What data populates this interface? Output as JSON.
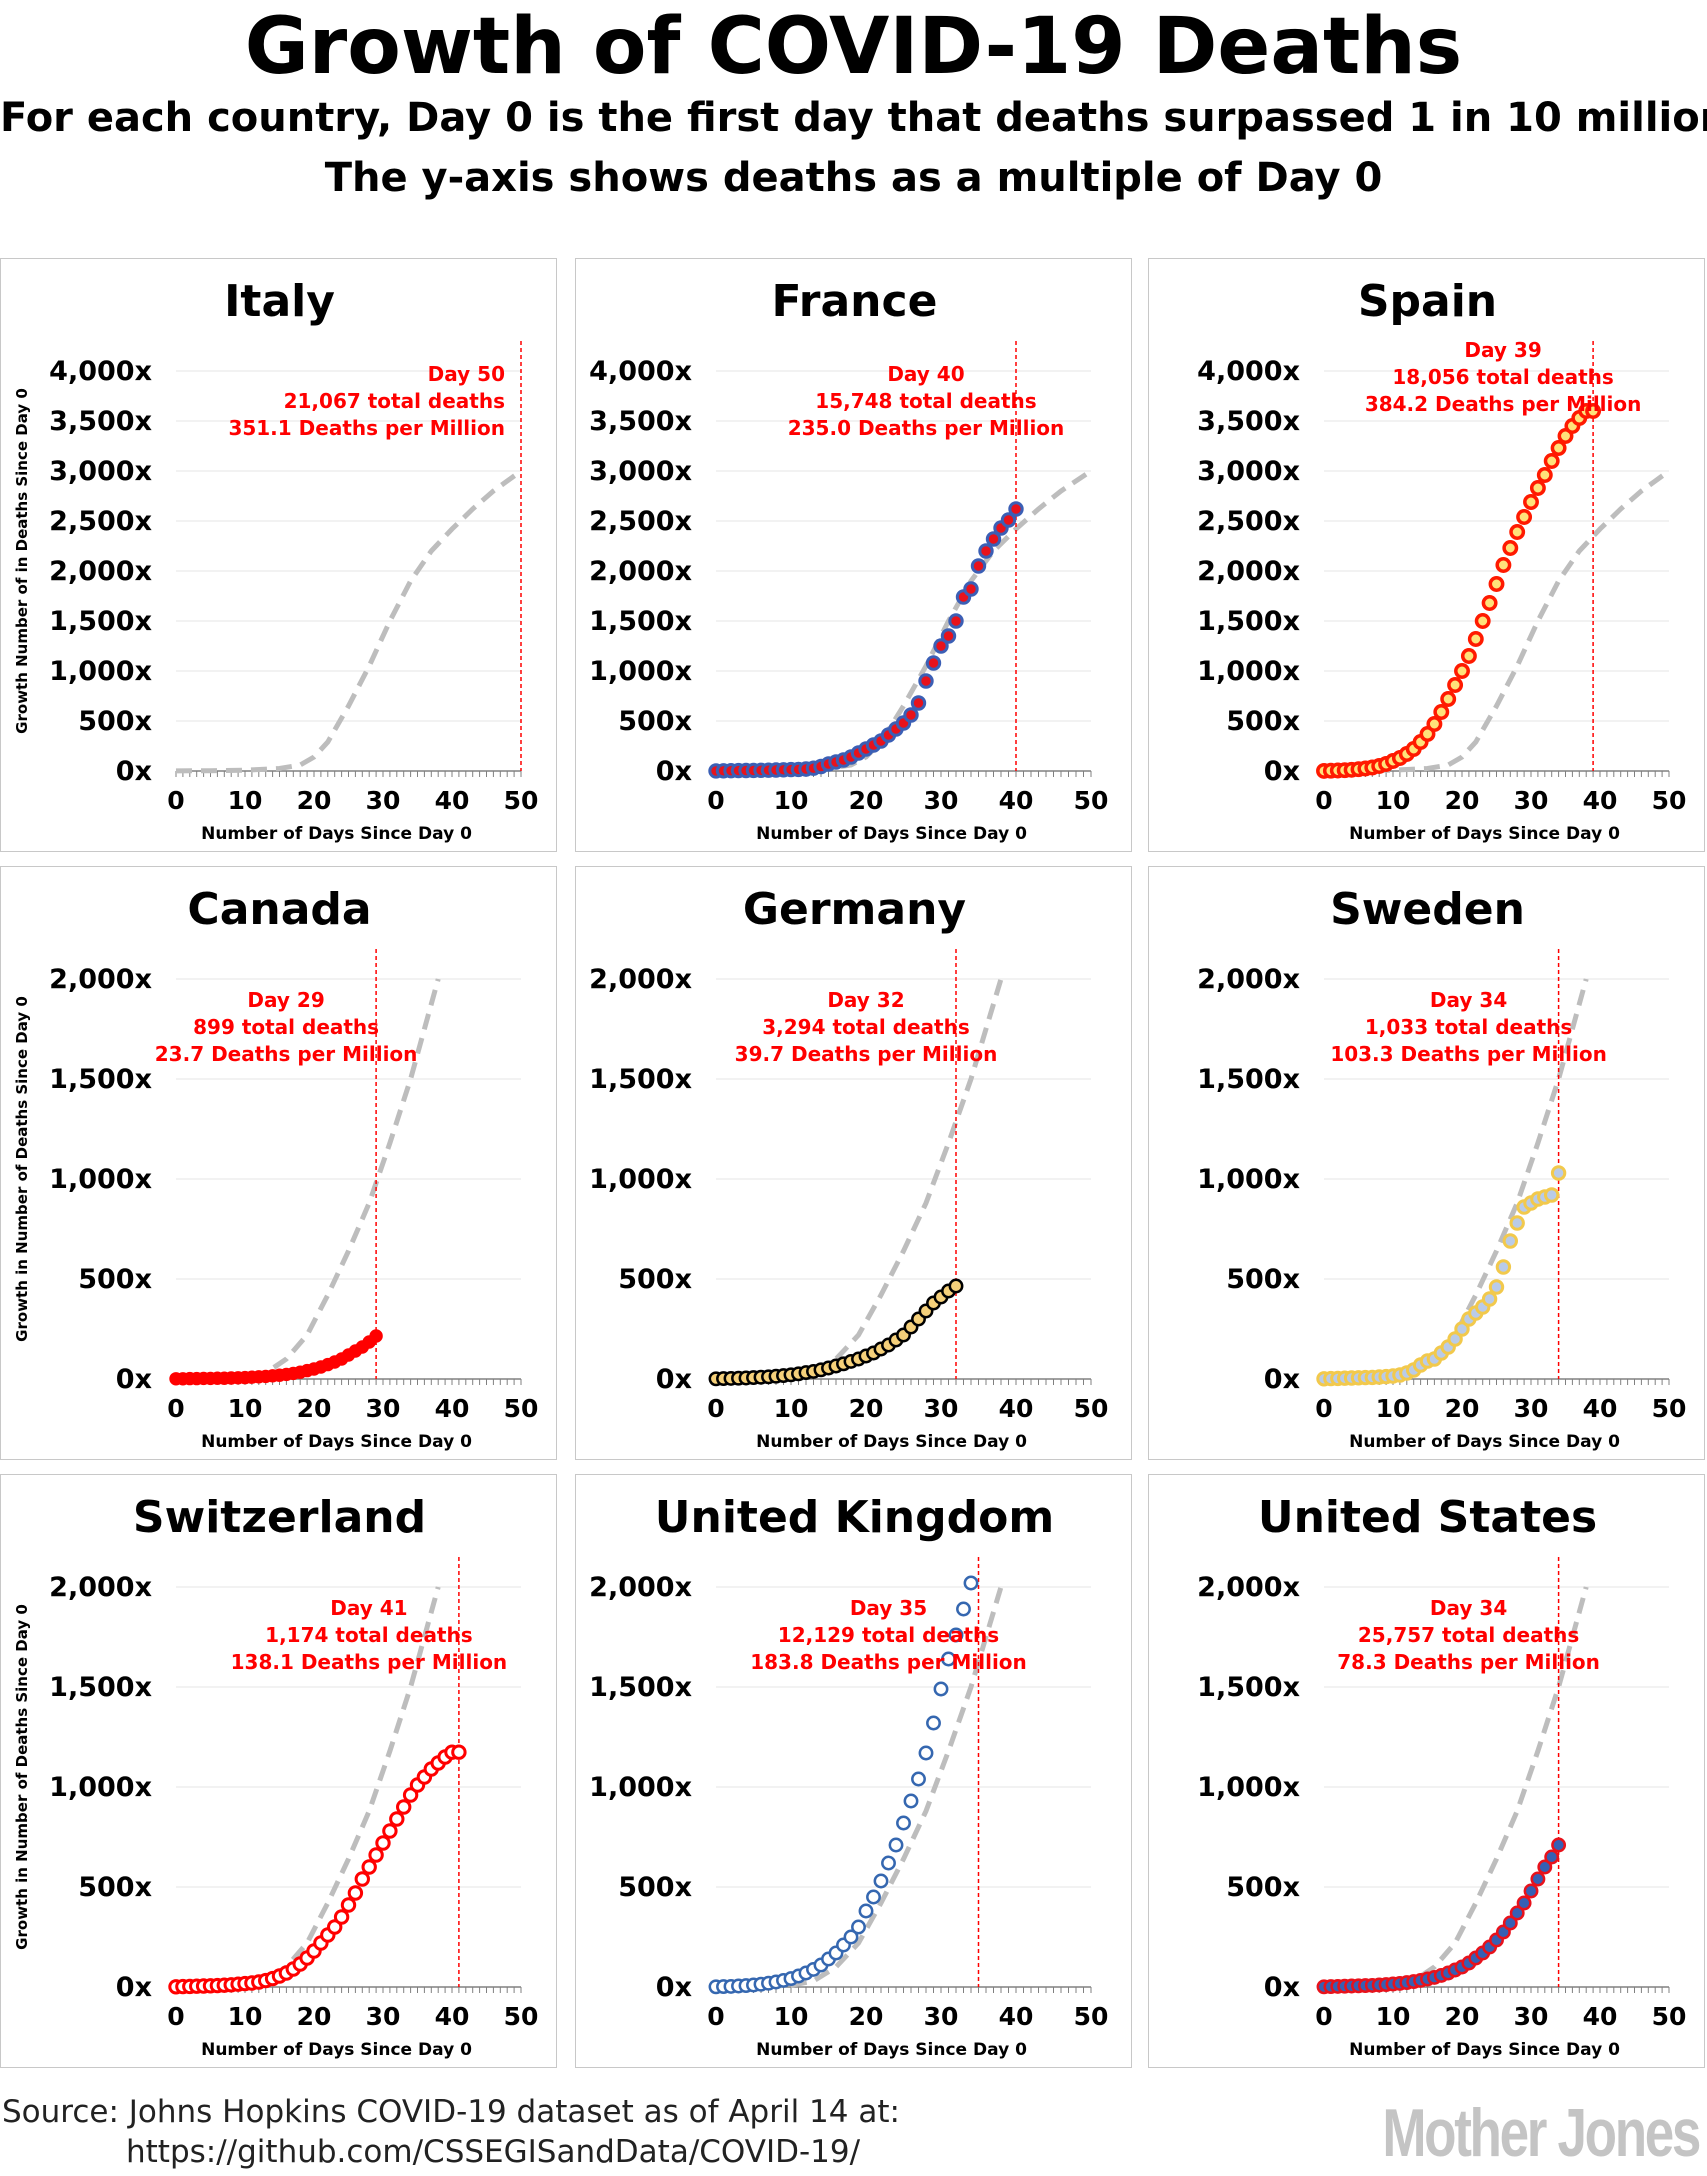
{
  "title": "Growth of COVID-19 Deaths",
  "subtitle1": "For each country, Day 0 is the first day that deaths surpassed 1 in 10 million",
  "subtitle2": "The y-axis shows deaths as a multiple of Day 0",
  "source_line1": "Source: Johns Hopkins COVID-19 dataset as of April 14 at:",
  "source_line2": "https://github.com/CSSEGISandData/COVID-19/",
  "logo": "Mother Jones",
  "colors": {
    "annotation": "#ff0000",
    "reference": "#bdbdbd",
    "axis": "#808080"
  },
  "chart_data": [
    {
      "type": "scatter",
      "country": "Italy",
      "ylim": [
        0,
        4000
      ],
      "yticks": [
        "0x",
        "500x",
        "1,000x",
        "1,500x",
        "2,000x",
        "2,500x",
        "3,000x",
        "3,500x",
        "4,000x"
      ],
      "xticks": [
        "0",
        "10",
        "20",
        "30",
        "40",
        "50"
      ],
      "xlim": [
        0,
        50
      ],
      "xlabel": "Number of Days Since Day 0",
      "ylabel": "Growth Number of in Deaths Since Day 0",
      "annotation": [
        "Day 50",
        "21,067 total deaths",
        "351.1 Deaths per Million"
      ],
      "vline": 50,
      "marker": "none",
      "reference": [
        [
          0,
          1
        ],
        [
          5,
          3
        ],
        [
          10,
          8
        ],
        [
          15,
          25
        ],
        [
          18,
          60
        ],
        [
          20,
          140
        ],
        [
          22,
          290
        ],
        [
          25,
          650
        ],
        [
          28,
          1050
        ],
        [
          31,
          1500
        ],
        [
          34,
          1900
        ],
        [
          37,
          2200
        ],
        [
          40,
          2420
        ],
        [
          43,
          2620
        ],
        [
          46,
          2800
        ],
        [
          50,
          3000
        ]
      ],
      "values": []
    },
    {
      "type": "scatter",
      "country": "France",
      "ylim": [
        0,
        4000
      ],
      "yticks": [
        "0x",
        "500x",
        "1,000x",
        "1,500x",
        "2,000x",
        "2,500x",
        "3,000x",
        "3,500x",
        "4,000x"
      ],
      "xticks": [
        "0",
        "10",
        "20",
        "30",
        "40",
        "50"
      ],
      "xlim": [
        0,
        50
      ],
      "xlabel": "Number of Days Since Day 0",
      "ylabel": "",
      "annotation": [
        "Day 40",
        "15,748 total deaths",
        "235.0 Deaths per Million"
      ],
      "vline": 40,
      "marker": "france",
      "reference": [
        [
          0,
          1
        ],
        [
          5,
          3
        ],
        [
          10,
          8
        ],
        [
          15,
          25
        ],
        [
          18,
          60
        ],
        [
          20,
          140
        ],
        [
          22,
          290
        ],
        [
          25,
          650
        ],
        [
          28,
          1050
        ],
        [
          31,
          1500
        ],
        [
          34,
          1900
        ],
        [
          37,
          2200
        ],
        [
          40,
          2420
        ],
        [
          43,
          2620
        ],
        [
          46,
          2800
        ],
        [
          50,
          3000
        ]
      ],
      "values": [
        1,
        2,
        3,
        4,
        5,
        6,
        7,
        8,
        10,
        12,
        14,
        16,
        20,
        28,
        45,
        70,
        90,
        110,
        140,
        180,
        220,
        260,
        300,
        360,
        420,
        480,
        560,
        680,
        900,
        1080,
        1250,
        1350,
        1500,
        1740,
        1820,
        2050,
        2200,
        2320,
        2430,
        2510,
        2620
      ]
    },
    {
      "type": "scatter",
      "country": "Spain",
      "ylim": [
        0,
        4000
      ],
      "yticks": [
        "0x",
        "500x",
        "1,000x",
        "1,500x",
        "2,000x",
        "2,500x",
        "3,000x",
        "3,500x",
        "4,000x"
      ],
      "xticks": [
        "0",
        "10",
        "20",
        "30",
        "40",
        "50"
      ],
      "xlim": [
        0,
        50
      ],
      "xlabel": "Number of Days Since Day 0",
      "ylabel": "",
      "annotation": [
        "Day 39",
        "18,056 total deaths",
        "384.2 Deaths per Million"
      ],
      "vline": 39,
      "marker": "spain",
      "reference": [
        [
          0,
          1
        ],
        [
          5,
          3
        ],
        [
          10,
          8
        ],
        [
          15,
          25
        ],
        [
          18,
          60
        ],
        [
          20,
          140
        ],
        [
          22,
          290
        ],
        [
          25,
          650
        ],
        [
          28,
          1050
        ],
        [
          31,
          1500
        ],
        [
          34,
          1900
        ],
        [
          37,
          2200
        ],
        [
          40,
          2420
        ],
        [
          43,
          2620
        ],
        [
          46,
          2800
        ],
        [
          50,
          3000
        ]
      ],
      "values": [
        1,
        3,
        5,
        8,
        12,
        18,
        25,
        35,
        50,
        70,
        100,
        130,
        170,
        220,
        290,
        370,
        470,
        590,
        720,
        860,
        1000,
        1150,
        1320,
        1500,
        1680,
        1870,
        2060,
        2230,
        2390,
        2540,
        2690,
        2830,
        2960,
        3100,
        3230,
        3350,
        3450,
        3530,
        3600,
        3600
      ]
    },
    {
      "type": "scatter",
      "country": "Canada",
      "ylim": [
        0,
        2000
      ],
      "yticks": [
        "0x",
        "500x",
        "1,000x",
        "1,500x",
        "2,000x"
      ],
      "xticks": [
        "0",
        "10",
        "20",
        "30",
        "40",
        "50"
      ],
      "xlim": [
        0,
        50
      ],
      "xlabel": "Number of Days Since Day 0",
      "ylabel": "Growth in Number of Deaths Since Day 0",
      "annotation": [
        "Day 29",
        "899 total deaths",
        "23.7 Deaths per Million"
      ],
      "vline": 29,
      "marker": "canada",
      "reference": [
        [
          0,
          1
        ],
        [
          5,
          3
        ],
        [
          10,
          8
        ],
        [
          13,
          30
        ],
        [
          16,
          100
        ],
        [
          19,
          220
        ],
        [
          22,
          420
        ],
        [
          25,
          640
        ],
        [
          28,
          880
        ],
        [
          31,
          1180
        ],
        [
          34,
          1500
        ],
        [
          38,
          2000
        ]
      ],
      "values": [
        1,
        1,
        2,
        2,
        3,
        3,
        4,
        4,
        5,
        6,
        7,
        9,
        11,
        13,
        16,
        19,
        23,
        28,
        34,
        42,
        50,
        60,
        72,
        85,
        100,
        120,
        140,
        160,
        185,
        215
      ]
    },
    {
      "type": "scatter",
      "country": "Germany",
      "ylim": [
        0,
        2000
      ],
      "yticks": [
        "0x",
        "500x",
        "1,000x",
        "1,500x",
        "2,000x"
      ],
      "xticks": [
        "0",
        "10",
        "20",
        "30",
        "40",
        "50"
      ],
      "xlim": [
        0,
        50
      ],
      "xlabel": "Number of Days Since Day 0",
      "ylabel": "",
      "annotation": [
        "Day 32",
        "3,294 total deaths",
        "39.7 Deaths per Million"
      ],
      "vline": 32,
      "marker": "germany",
      "reference": [
        [
          0,
          1
        ],
        [
          5,
          3
        ],
        [
          10,
          8
        ],
        [
          13,
          30
        ],
        [
          16,
          100
        ],
        [
          19,
          220
        ],
        [
          22,
          420
        ],
        [
          25,
          640
        ],
        [
          28,
          880
        ],
        [
          31,
          1180
        ],
        [
          34,
          1500
        ],
        [
          38,
          2000
        ]
      ],
      "values": [
        1,
        2,
        3,
        4,
        5,
        7,
        9,
        11,
        14,
        17,
        21,
        26,
        32,
        38,
        46,
        55,
        65,
        76,
        88,
        100,
        115,
        130,
        150,
        170,
        195,
        220,
        260,
        300,
        340,
        380,
        410,
        440,
        465
      ]
    },
    {
      "type": "scatter",
      "country": "Sweden",
      "ylim": [
        0,
        2000
      ],
      "yticks": [
        "0x",
        "500x",
        "1,000x",
        "1,500x",
        "2,000x"
      ],
      "xticks": [
        "0",
        "10",
        "20",
        "30",
        "40",
        "50"
      ],
      "xlim": [
        0,
        50
      ],
      "xlabel": "Number of Days Since Day 0",
      "ylabel": "",
      "annotation": [
        "Day 34",
        "1,033 total deaths",
        "103.3 Deaths per Million"
      ],
      "vline": 34,
      "marker": "sweden",
      "reference": [
        [
          0,
          1
        ],
        [
          5,
          3
        ],
        [
          10,
          8
        ],
        [
          13,
          30
        ],
        [
          16,
          100
        ],
        [
          19,
          220
        ],
        [
          22,
          420
        ],
        [
          25,
          640
        ],
        [
          28,
          880
        ],
        [
          31,
          1180
        ],
        [
          34,
          1500
        ],
        [
          38,
          2000
        ]
      ],
      "values": [
        1,
        2,
        3,
        4,
        5,
        6,
        7,
        8,
        10,
        12,
        15,
        20,
        30,
        45,
        70,
        90,
        100,
        130,
        160,
        200,
        250,
        300,
        330,
        360,
        400,
        460,
        560,
        690,
        780,
        860,
        880,
        900,
        910,
        920,
        1030
      ]
    },
    {
      "type": "scatter",
      "country": "Switzerland",
      "ylim": [
        0,
        2000
      ],
      "yticks": [
        "0x",
        "500x",
        "1,000x",
        "1,500x",
        "2,000x"
      ],
      "xticks": [
        "0",
        "10",
        "20",
        "30",
        "40",
        "50"
      ],
      "xlim": [
        0,
        50
      ],
      "xlabel": "Number of Days Since Day 0",
      "ylabel": "Growth in Number of Deaths Since Day 0",
      "annotation": [
        "Day 41",
        "1,174 total deaths",
        "138.1 Deaths per Million"
      ],
      "vline": 41,
      "marker": "switzerland",
      "reference": [
        [
          0,
          1
        ],
        [
          5,
          3
        ],
        [
          10,
          8
        ],
        [
          13,
          30
        ],
        [
          16,
          100
        ],
        [
          19,
          220
        ],
        [
          22,
          420
        ],
        [
          25,
          640
        ],
        [
          28,
          880
        ],
        [
          31,
          1180
        ],
        [
          34,
          1500
        ],
        [
          38,
          2000
        ]
      ],
      "values": [
        1,
        2,
        3,
        4,
        5,
        6,
        7,
        9,
        11,
        14,
        17,
        20,
        25,
        32,
        42,
        55,
        70,
        90,
        115,
        145,
        180,
        220,
        260,
        300,
        350,
        410,
        470,
        540,
        600,
        660,
        720,
        780,
        840,
        900,
        960,
        1010,
        1050,
        1090,
        1120,
        1150,
        1174,
        1174
      ]
    },
    {
      "type": "scatter",
      "country": "United Kingdom",
      "ylim": [
        0,
        2000
      ],
      "yticks": [
        "0x",
        "500x",
        "1,000x",
        "1,500x",
        "2,000x"
      ],
      "xticks": [
        "0",
        "10",
        "20",
        "30",
        "40",
        "50"
      ],
      "xlim": [
        0,
        50
      ],
      "xlabel": "Number of Days Since Day 0",
      "ylabel": "",
      "annotation": [
        "Day 35",
        "12,129 total deaths",
        "183.8 Deaths per Million"
      ],
      "vline": 35,
      "marker": "uk",
      "reference": [
        [
          0,
          1
        ],
        [
          5,
          3
        ],
        [
          10,
          8
        ],
        [
          13,
          30
        ],
        [
          16,
          100
        ],
        [
          19,
          220
        ],
        [
          22,
          420
        ],
        [
          25,
          640
        ],
        [
          28,
          880
        ],
        [
          31,
          1180
        ],
        [
          34,
          1500
        ],
        [
          38,
          2000
        ]
      ],
      "values": [
        1,
        2,
        3,
        5,
        7,
        10,
        14,
        19,
        25,
        33,
        42,
        55,
        70,
        88,
        110,
        140,
        170,
        210,
        250,
        300,
        380,
        450,
        530,
        620,
        710,
        820,
        930,
        1040,
        1170,
        1320,
        1490,
        1640,
        1760,
        1890,
        2020
      ]
    },
    {
      "type": "scatter",
      "country": "United States",
      "ylim": [
        0,
        2000
      ],
      "yticks": [
        "0x",
        "500x",
        "1,000x",
        "1,500x",
        "2,000x"
      ],
      "xticks": [
        "0",
        "10",
        "20",
        "30",
        "40",
        "50"
      ],
      "xlim": [
        0,
        50
      ],
      "xlabel": "Number of Days Since Day 0",
      "ylabel": "",
      "annotation": [
        "Day 34",
        "25,757 total deaths",
        "78.3 Deaths per Million"
      ],
      "vline": 34,
      "marker": "us",
      "reference": [
        [
          0,
          1
        ],
        [
          5,
          3
        ],
        [
          10,
          8
        ],
        [
          13,
          30
        ],
        [
          16,
          100
        ],
        [
          19,
          220
        ],
        [
          22,
          420
        ],
        [
          25,
          640
        ],
        [
          28,
          880
        ],
        [
          31,
          1180
        ],
        [
          34,
          1500
        ],
        [
          38,
          2000
        ]
      ],
      "values": [
        1,
        2,
        3,
        4,
        5,
        6,
        7,
        8,
        10,
        12,
        15,
        18,
        22,
        27,
        33,
        40,
        48,
        58,
        70,
        85,
        100,
        120,
        145,
        170,
        200,
        235,
        275,
        320,
        370,
        420,
        480,
        540,
        600,
        650,
        710
      ]
    }
  ]
}
